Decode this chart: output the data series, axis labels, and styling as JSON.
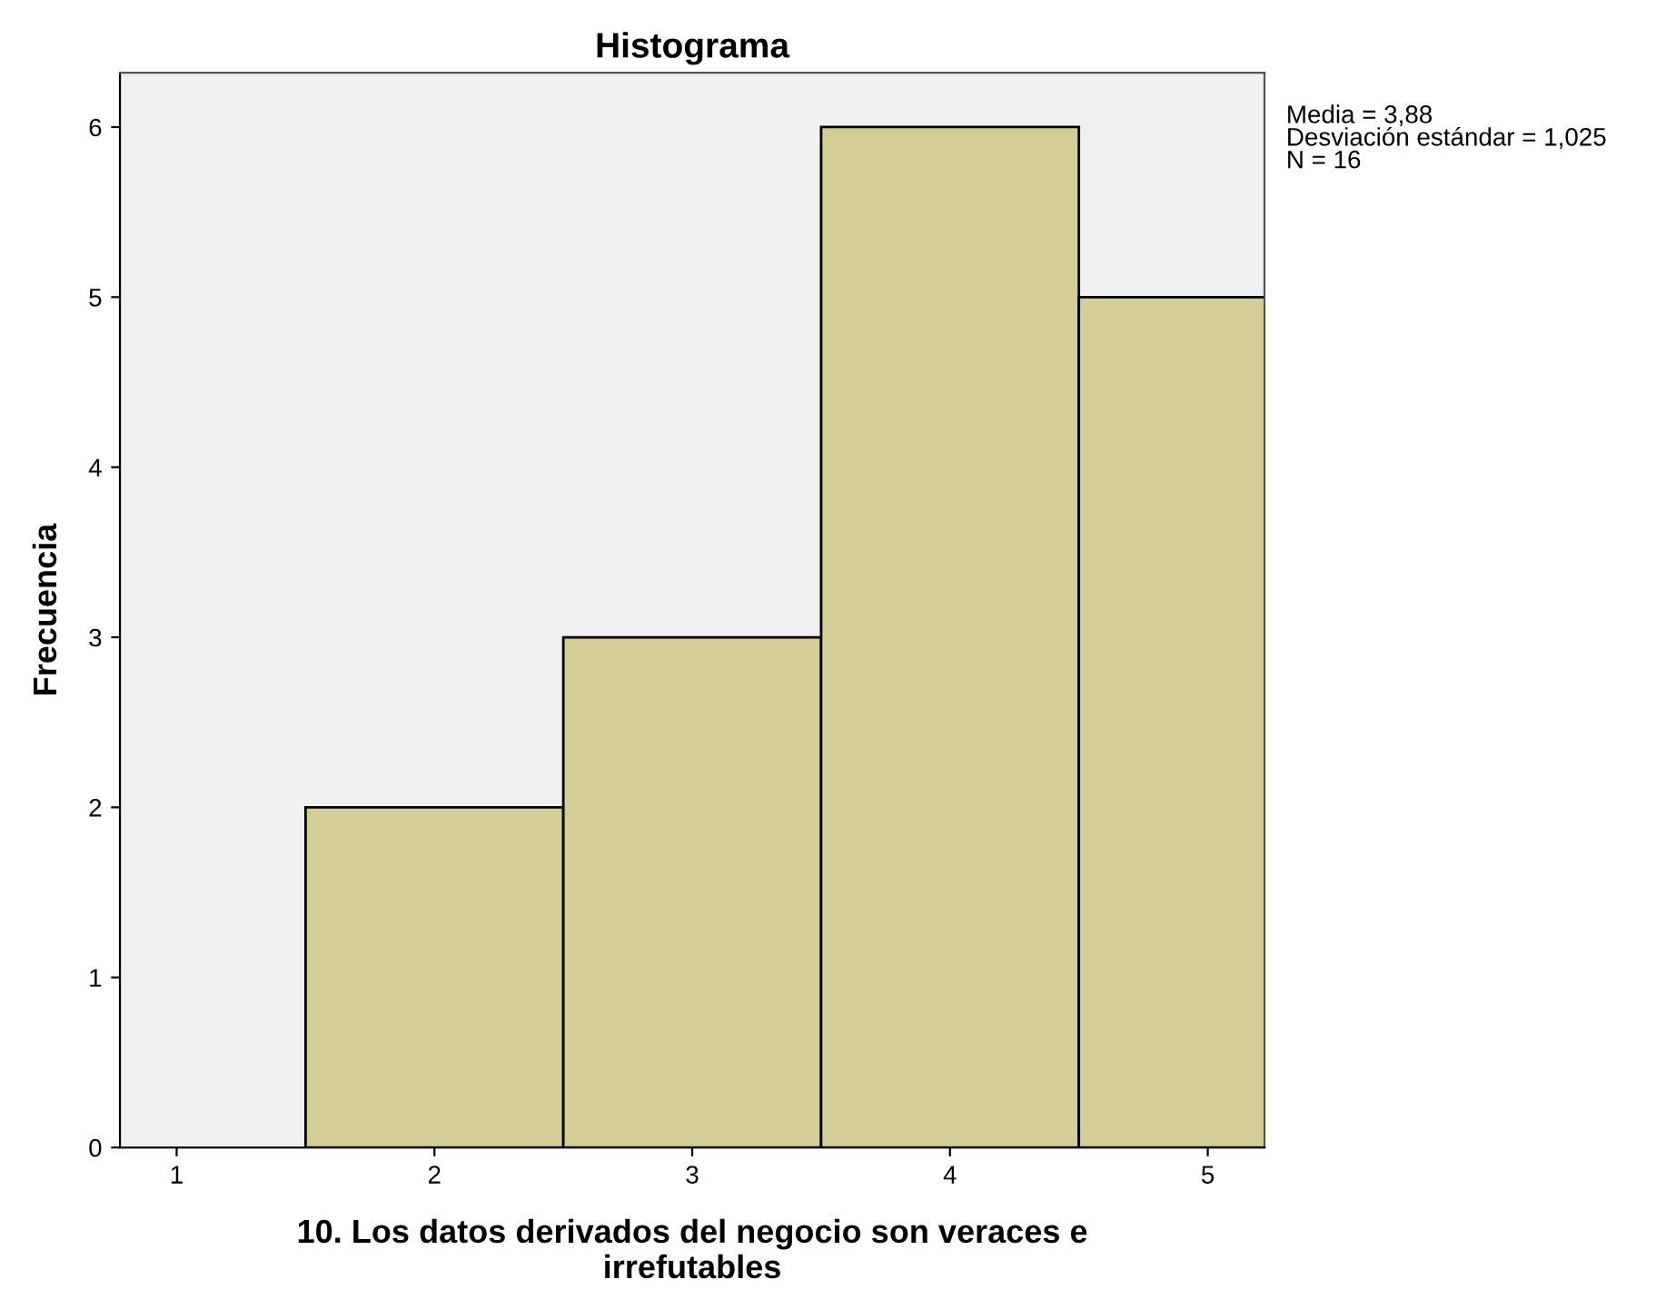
{
  "chart_data": {
    "type": "histogram",
    "title": "Histograma",
    "xlabel": "10. Los datos derivados del negocio son veraces e\nirrefutables",
    "ylabel": "Frecuencia",
    "bins": [
      1.5,
      2.5,
      3.5,
      4.5,
      5.5
    ],
    "values": [
      2,
      3,
      6,
      5
    ],
    "color": "#d3ce97",
    "xlim": [
      0.78,
      5.22
    ],
    "xticks": [
      1,
      2,
      3,
      4,
      5
    ],
    "ylim": [
      0,
      6.32
    ],
    "yticks": [
      0,
      1,
      2,
      3,
      4,
      5,
      6
    ],
    "grid": false,
    "legend": false,
    "annotations": [
      "Media = 3,88\nDesviación estándar = 1,025\nN = 16"
    ]
  }
}
